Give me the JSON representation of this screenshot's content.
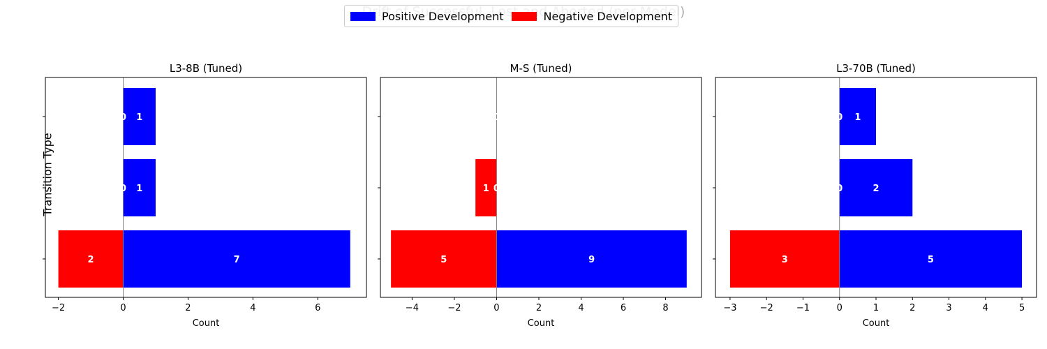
{
  "figure": {
    "suptitle": "Drift of Successful, Lost and Aborted (per Model)",
    "ylabel": "Transition Type",
    "legend": [
      {
        "label": "Positive Development",
        "color": "#0000ff"
      },
      {
        "label": "Negative Development",
        "color": "#ff0000"
      }
    ]
  },
  "chart_data": [
    {
      "type": "bar",
      "orientation": "horizontal",
      "title": "L3-8B (Tuned)",
      "xlabel": "Count",
      "ylabel": "Transition Type",
      "xlim": [
        -2.4,
        7.5
      ],
      "xticks": [
        -2,
        0,
        2,
        4,
        6
      ],
      "series": [
        {
          "name": "Positive Development",
          "values": [
            1,
            1,
            7
          ]
        },
        {
          "name": "Negative Development",
          "values": [
            0,
            0,
            -2
          ]
        }
      ]
    },
    {
      "type": "bar",
      "orientation": "horizontal",
      "title": "M-S (Tuned)",
      "xlabel": "Count",
      "ylabel": "",
      "xlim": [
        -5.5,
        9.7
      ],
      "xticks": [
        -4,
        -2,
        0,
        2,
        4,
        6,
        8
      ],
      "series": [
        {
          "name": "Positive Development",
          "values": [
            0,
            0,
            9
          ]
        },
        {
          "name": "Negative Development",
          "values": [
            0,
            -1,
            -5
          ]
        }
      ]
    },
    {
      "type": "bar",
      "orientation": "horizontal",
      "title": "L3-70B (Tuned)",
      "xlabel": "Count",
      "ylabel": "",
      "xlim": [
        -3.4,
        5.4
      ],
      "xticks": [
        -3,
        -2,
        -1,
        0,
        1,
        2,
        3,
        4,
        5
      ],
      "series": [
        {
          "name": "Positive Development",
          "values": [
            1,
            2,
            5
          ]
        },
        {
          "name": "Negative Development",
          "values": [
            0,
            0,
            -3
          ]
        }
      ]
    }
  ]
}
